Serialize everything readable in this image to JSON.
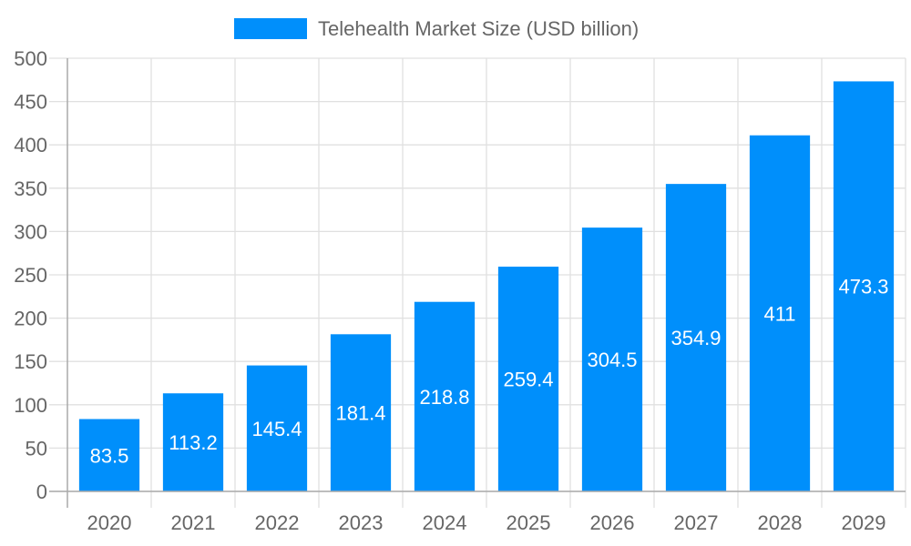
{
  "chart_data": {
    "type": "bar",
    "title": "",
    "xlabel": "",
    "ylabel": "",
    "categories": [
      "2020",
      "2021",
      "2022",
      "2023",
      "2024",
      "2025",
      "2026",
      "2027",
      "2028",
      "2029"
    ],
    "series": [
      {
        "name": "Telehealth Market Size (USD billion)",
        "values": [
          83.5,
          113.2,
          145.4,
          181.4,
          218.8,
          259.4,
          304.5,
          354.9,
          411,
          473.3
        ],
        "color": "#008ffb"
      }
    ],
    "ylim": [
      0,
      500
    ],
    "yticks": [
      0,
      50,
      100,
      150,
      200,
      250,
      300,
      350,
      400,
      450,
      500
    ],
    "grid": true,
    "legend": "top-center",
    "data_labels": true
  }
}
